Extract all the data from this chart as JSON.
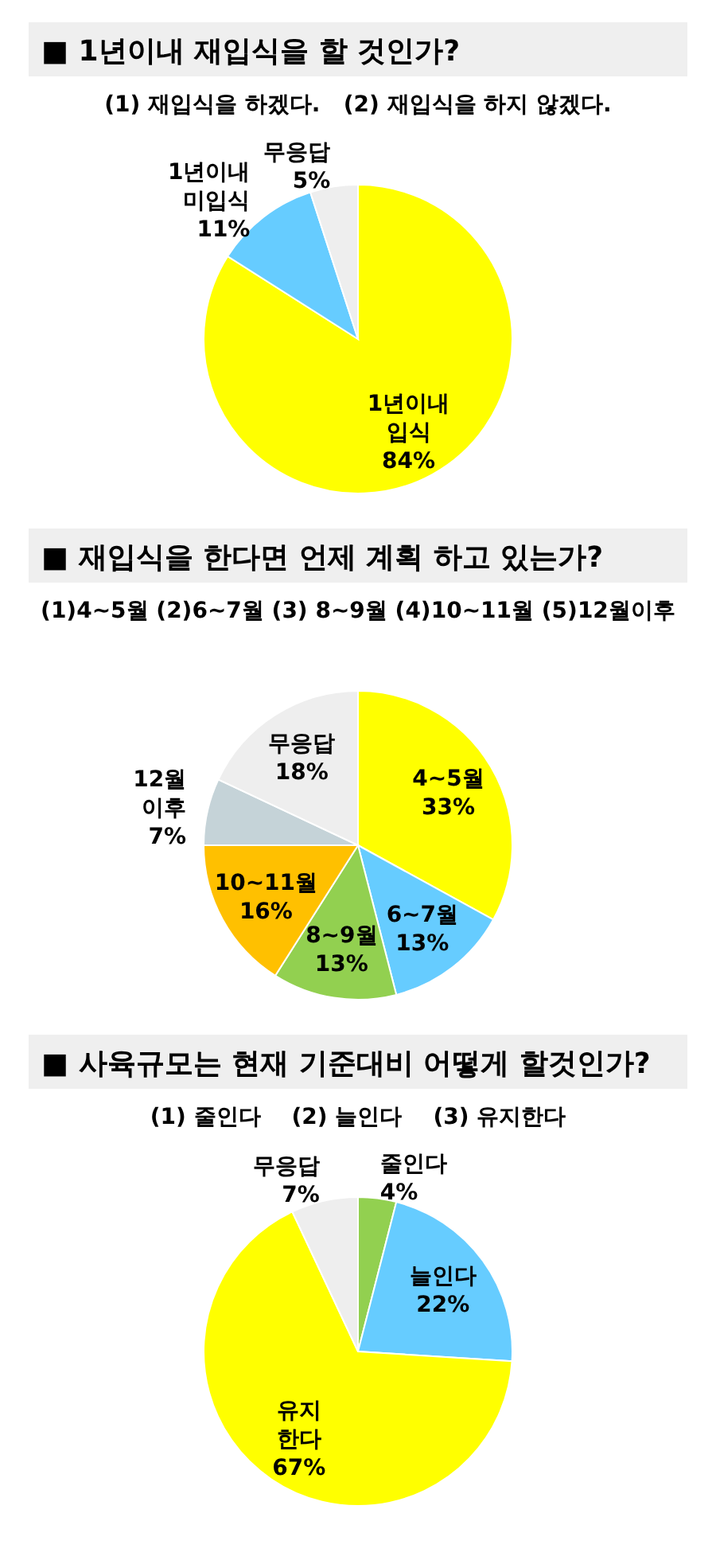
{
  "chart_data": [
    {
      "type": "pie",
      "title": "■ 1년이내 재입식을 할 것인가?",
      "subtitle": "(1) 재입식을 하겠다.   (2) 재입식을 하지 않겠다.",
      "categories": [
        "1년이내\n입식",
        "1년이내\n미입식",
        "무응답"
      ],
      "values": [
        84,
        11,
        5
      ],
      "value_labels": [
        "84%",
        "11%",
        "5%"
      ],
      "colors": [
        "#ffff00",
        "#66ccff",
        "#eeeeee"
      ]
    },
    {
      "type": "pie",
      "title": "■ 재입식을 한다면 언제 계획 하고 있는가?",
      "subtitle": "(1)4~5월 (2)6~7월 (3) 8~9월 (4)10~11월 (5)12월이후",
      "categories": [
        "4~5월",
        "6~7월",
        "8~9월",
        "10~11월",
        "12월\n이후",
        "무응답"
      ],
      "values": [
        33,
        13,
        13,
        16,
        7,
        18
      ],
      "value_labels": [
        "33%",
        "13%",
        "13%",
        "16%",
        "7%",
        "18%"
      ],
      "colors": [
        "#ffff00",
        "#66ccff",
        "#92d050",
        "#ffc000",
        "#c5d3d8",
        "#eeeeee"
      ]
    },
    {
      "type": "pie",
      "title": "■ 사육규모는 현재 기준대비 어떻게 할것인가?",
      "subtitle": "(1) 줄인다    (2) 늘인다    (3) 유지한다",
      "categories": [
        "줄인다",
        "늘인다",
        "유지\n한다",
        "무응답"
      ],
      "values": [
        4,
        22,
        67,
        7
      ],
      "value_labels": [
        "4%",
        "22%",
        "67%",
        "7%"
      ],
      "colors": [
        "#92d050",
        "#66ccff",
        "#ffff00",
        "#eeeeee"
      ]
    }
  ]
}
